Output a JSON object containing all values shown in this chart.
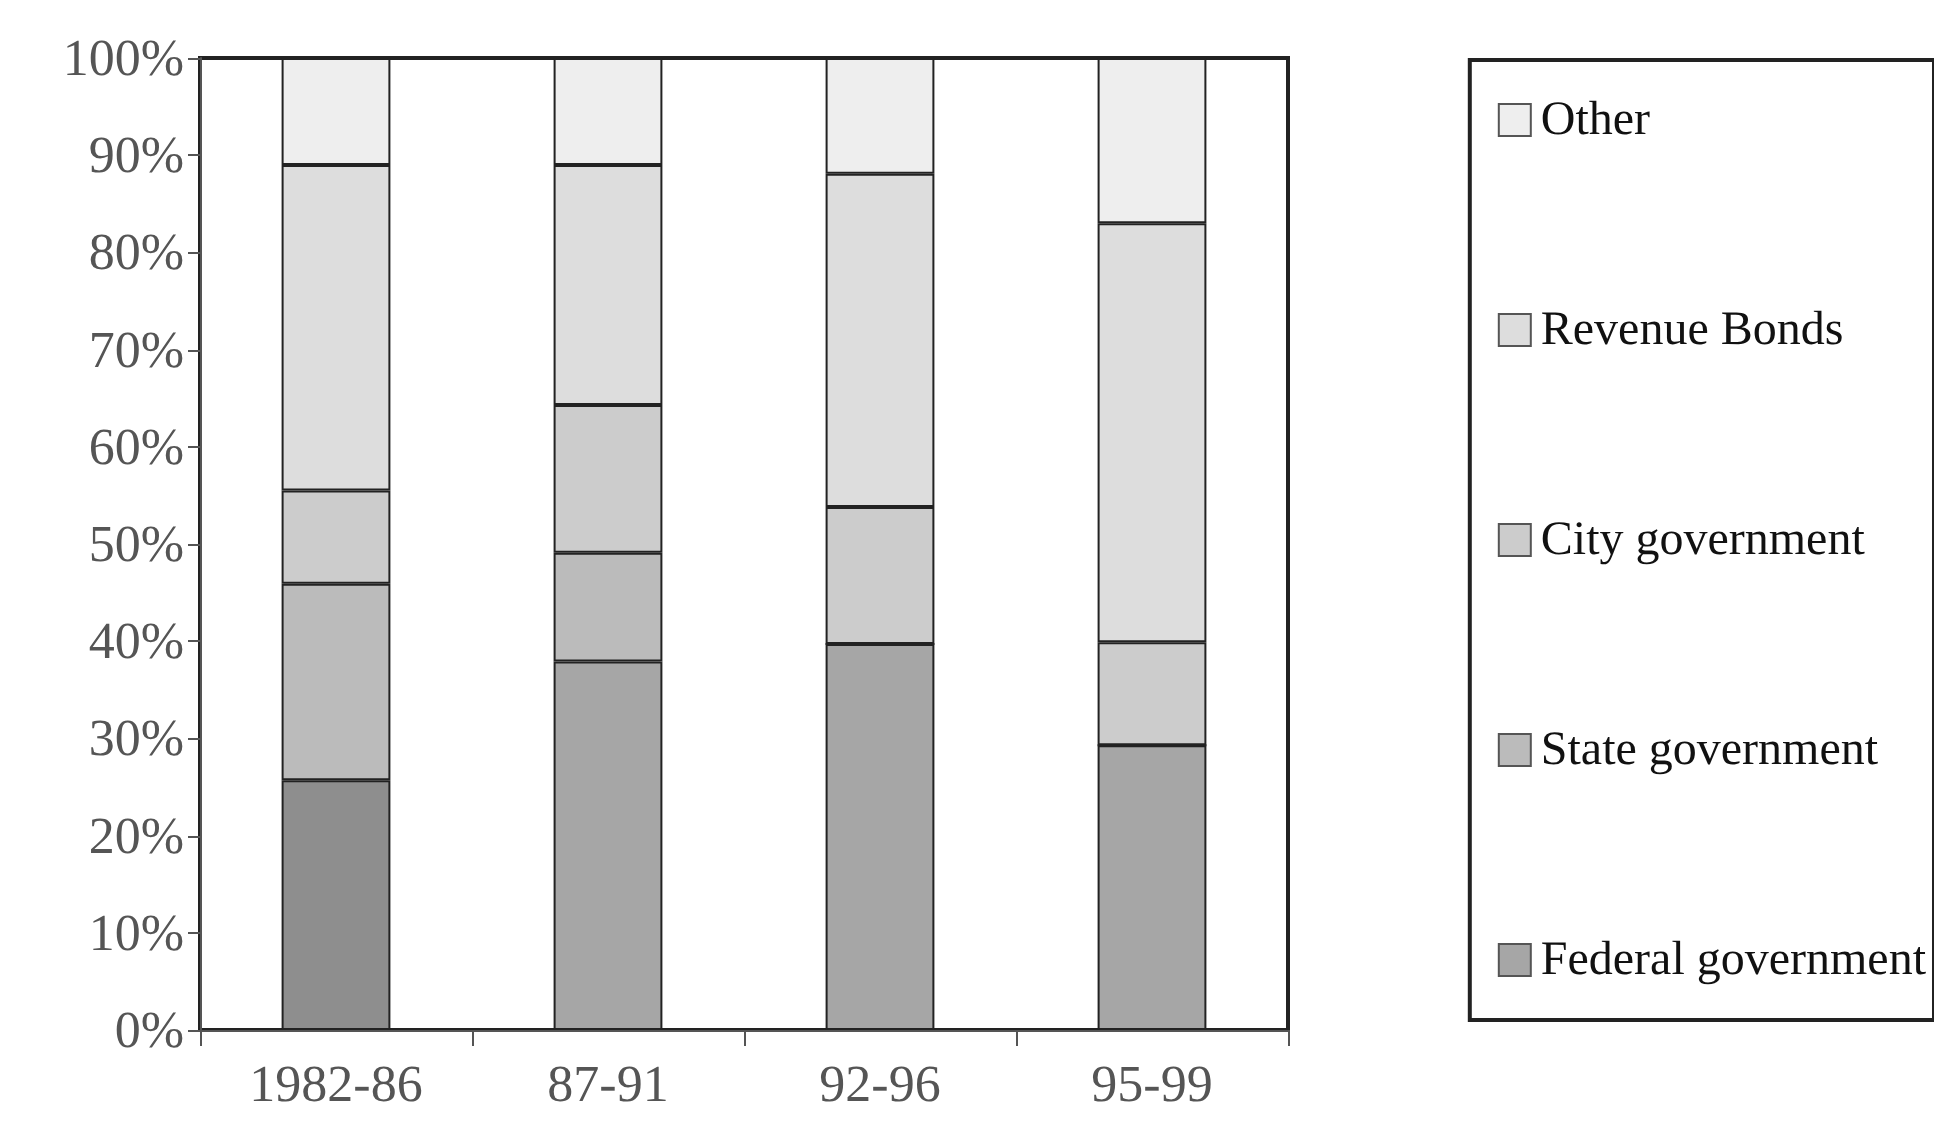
{
  "chart_data": {
    "type": "bar",
    "stacked": true,
    "categories": [
      "1982-86",
      "87-91",
      "92-96",
      "95-99"
    ],
    "series": [
      {
        "name": "Federal government",
        "color": "#a6a6a6",
        "colors": [
          "#8e8e8e",
          "#a6a6a6",
          "#a6a6a6",
          "#a6a6a6"
        ],
        "values": [
          25.7,
          37.9,
          39.7,
          29.3
        ]
      },
      {
        "name": "State government",
        "color": "#bbbbbb",
        "values": [
          20.2,
          11.2,
          0,
          0
        ]
      },
      {
        "name": "City government",
        "color": "#cccccc",
        "values": [
          9.6,
          15.2,
          14.1,
          10.6
        ]
      },
      {
        "name": "Revenue Bonds",
        "color": "#dddddd",
        "values": [
          33.5,
          24.7,
          34.3,
          43.1
        ]
      },
      {
        "name": "Other",
        "color": "#eeeeee",
        "values": [
          11.0,
          11.0,
          11.9,
          17.0
        ]
      }
    ],
    "ylim": [
      0,
      100
    ],
    "yticks": [
      {
        "value": 0,
        "label": "0%"
      },
      {
        "value": 10,
        "label": "10%"
      },
      {
        "value": 20,
        "label": "20%"
      },
      {
        "value": 30,
        "label": "30%"
      },
      {
        "value": 40,
        "label": "40%"
      },
      {
        "value": 50,
        "label": "50%"
      },
      {
        "value": 60,
        "label": "60%"
      },
      {
        "value": 70,
        "label": "70%"
      },
      {
        "value": 80,
        "label": "80%"
      },
      {
        "value": 90,
        "label": "90%"
      },
      {
        "value": 100,
        "label": "100%"
      }
    ],
    "grid": false,
    "legend": "right"
  }
}
